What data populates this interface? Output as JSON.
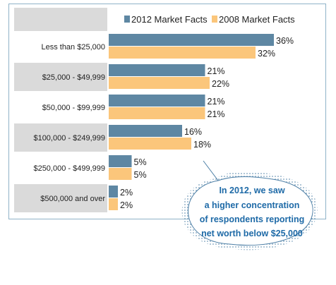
{
  "chart_data": {
    "type": "bar",
    "orientation": "horizontal",
    "categories": [
      "Less than $25,000",
      "$25,000 - $49,999",
      "$50,000 - $99,999",
      "$100,000 - $249,999",
      "$250,000 - $499,999",
      "$500,000 and over"
    ],
    "series": [
      {
        "name": "2012 Market Facts",
        "values": [
          36,
          21,
          21,
          16,
          5,
          2
        ],
        "color": "#5e87a3"
      },
      {
        "name": "2008 Market Facts",
        "values": [
          32,
          22,
          21,
          18,
          5,
          2
        ],
        "color": "#fbc67b"
      }
    ],
    "value_suffix": "%",
    "xlim": [
      0,
      40
    ],
    "grid": false,
    "legend": "top",
    "category_band_color": "#dadada",
    "callout": {
      "lines": [
        "In 2012, we saw",
        "a higher concentration",
        "of respondents reporting",
        "net worth below $25,000"
      ],
      "text_color": "#1e6aa7"
    }
  }
}
